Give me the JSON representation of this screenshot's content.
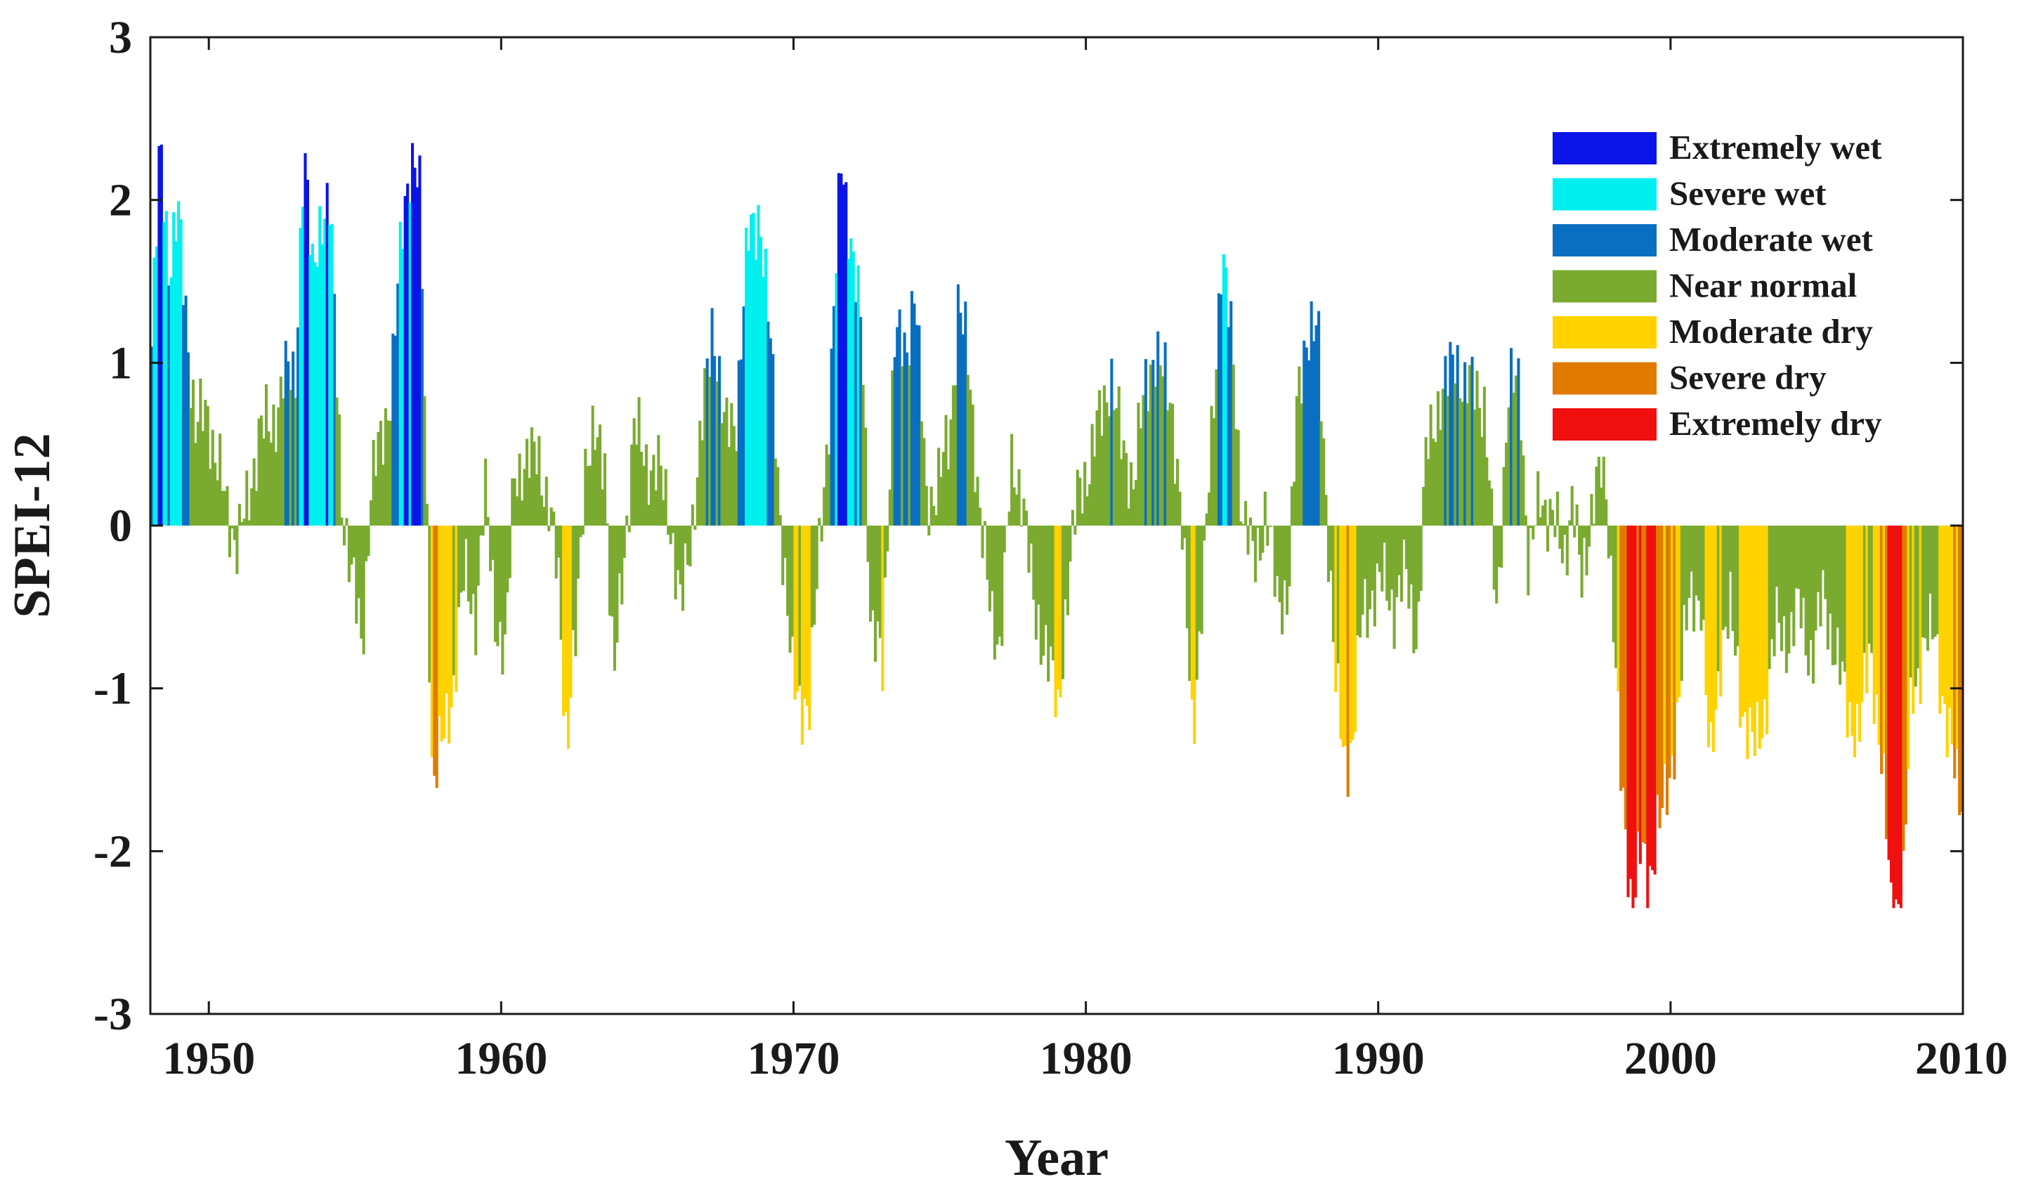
{
  "chart_data": {
    "type": "bar",
    "title": "",
    "xlabel": "Year",
    "ylabel": "SPEI-12",
    "xlim": [
      1948,
      2010
    ],
    "ylim": [
      -3,
      3
    ],
    "xticks": [
      1950,
      1960,
      1970,
      1980,
      1990,
      2000,
      2010
    ],
    "yticks": [
      -3,
      -2,
      -1,
      0,
      1,
      2,
      3
    ],
    "grid": false,
    "legend_position": "top-right",
    "categories": [
      {
        "label": "Extremely wet",
        "color": "#0a14e6",
        "min": 2.0,
        "max": 99
      },
      {
        "label": "Severe wet",
        "color": "#00f0f0",
        "min": 1.5,
        "max": 2.0
      },
      {
        "label": "Moderate wet",
        "color": "#0a6fc0",
        "min": 1.0,
        "max": 1.5
      },
      {
        "label": "Near normal",
        "color": "#7aab30",
        "min": -1.0,
        "max": 1.0
      },
      {
        "label": "Moderate dry",
        "color": "#ffd200",
        "min": -1.5,
        "max": -1.0
      },
      {
        "label": "Severe dry",
        "color": "#e07b00",
        "min": -2.0,
        "max": -1.5
      },
      {
        "label": "Extremely dry",
        "color": "#f01010",
        "min": -99,
        "max": -2.0
      }
    ],
    "series_keypoints": [
      [
        1948.0,
        1.1
      ],
      [
        1948.3,
        2.35
      ],
      [
        1948.6,
        1.6
      ],
      [
        1948.9,
        1.9
      ],
      [
        1949.2,
        1.25
      ],
      [
        1949.5,
        0.6
      ],
      [
        1949.9,
        0.7
      ],
      [
        1950.3,
        0.35
      ],
      [
        1950.6,
        0.05
      ],
      [
        1950.9,
        -0.08
      ],
      [
        1951.3,
        0.1
      ],
      [
        1951.7,
        0.65
      ],
      [
        1952.1,
        0.55
      ],
      [
        1952.5,
        0.95
      ],
      [
        1952.9,
        0.85
      ],
      [
        1953.2,
        2.35
      ],
      [
        1953.5,
        1.5
      ],
      [
        1953.8,
        1.95
      ],
      [
        1954.1,
        1.95
      ],
      [
        1954.5,
        0.2
      ],
      [
        1954.8,
        -0.3
      ],
      [
        1955.2,
        -0.7
      ],
      [
        1955.5,
        0.2
      ],
      [
        1955.8,
        0.5
      ],
      [
        1956.2,
        0.85
      ],
      [
        1956.6,
        1.9
      ],
      [
        1956.9,
        2.35
      ],
      [
        1957.2,
        1.95
      ],
      [
        1957.4,
        0.2
      ],
      [
        1957.6,
        -1.58
      ],
      [
        1958.0,
        -1.3
      ],
      [
        1958.3,
        -1.0
      ],
      [
        1958.7,
        -0.3
      ],
      [
        1959.1,
        -0.55
      ],
      [
        1959.4,
        0.2
      ],
      [
        1959.8,
        -0.6
      ],
      [
        1960.1,
        -0.85
      ],
      [
        1960.4,
        0.4
      ],
      [
        1960.8,
        0.3
      ],
      [
        1961.2,
        0.55
      ],
      [
        1961.5,
        0.1
      ],
      [
        1961.9,
        -0.2
      ],
      [
        1962.2,
        -1.42
      ],
      [
        1962.5,
        -0.7
      ],
      [
        1962.8,
        0.4
      ],
      [
        1963.2,
        0.5
      ],
      [
        1963.5,
        0.45
      ],
      [
        1963.8,
        -1.0
      ],
      [
        1964.1,
        -0.3
      ],
      [
        1964.5,
        0.6
      ],
      [
        1964.9,
        0.4
      ],
      [
        1965.3,
        0.35
      ],
      [
        1965.7,
        0.1
      ],
      [
        1966.1,
        -0.55
      ],
      [
        1966.5,
        0.05
      ],
      [
        1966.8,
        0.55
      ],
      [
        1967.2,
        1.3
      ],
      [
        1967.6,
        0.55
      ],
      [
        1968.0,
        0.7
      ],
      [
        1968.4,
        1.75
      ],
      [
        1968.8,
        1.95
      ],
      [
        1969.2,
        1.0
      ],
      [
        1969.5,
        0.1
      ],
      [
        1969.9,
        -0.95
      ],
      [
        1970.2,
        -1.05
      ],
      [
        1970.5,
        -1.15
      ],
      [
        1970.9,
        0.1
      ],
      [
        1971.2,
        0.7
      ],
      [
        1971.6,
        2.35
      ],
      [
        1972.0,
        1.55
      ],
      [
        1972.3,
        1.2
      ],
      [
        1972.6,
        -0.6
      ],
      [
        1973.0,
        -0.9
      ],
      [
        1973.4,
        1.2
      ],
      [
        1973.8,
        1.0
      ],
      [
        1974.1,
        1.55
      ],
      [
        1974.5,
        0.1
      ],
      [
        1974.9,
        0.3
      ],
      [
        1975.3,
        0.5
      ],
      [
        1975.6,
        1.45
      ],
      [
        1975.9,
        1.0
      ],
      [
        1976.3,
        0.2
      ],
      [
        1976.7,
        -0.6
      ],
      [
        1977.0,
        -0.7
      ],
      [
        1977.4,
        0.3
      ],
      [
        1977.8,
        0.25
      ],
      [
        1978.2,
        -0.6
      ],
      [
        1978.6,
        -0.7
      ],
      [
        1979.0,
        -1.2
      ],
      [
        1979.3,
        -0.4
      ],
      [
        1979.7,
        0.2
      ],
      [
        1980.1,
        0.4
      ],
      [
        1980.5,
        0.7
      ],
      [
        1980.8,
        0.95
      ],
      [
        1981.2,
        0.45
      ],
      [
        1981.6,
        0.3
      ],
      [
        1982.0,
        0.85
      ],
      [
        1982.3,
        1.1
      ],
      [
        1982.6,
        0.9
      ],
      [
        1982.9,
        0.75
      ],
      [
        1983.2,
        0.1
      ],
      [
        1983.6,
        -1.25
      ],
      [
        1984.0,
        -0.3
      ],
      [
        1984.3,
        0.7
      ],
      [
        1984.6,
        1.7
      ],
      [
        1985.0,
        1.0
      ],
      [
        1985.3,
        0.1
      ],
      [
        1985.7,
        -0.25
      ],
      [
        1986.1,
        0.1
      ],
      [
        1986.5,
        -0.45
      ],
      [
        1986.9,
        -0.4
      ],
      [
        1987.2,
        0.8
      ],
      [
        1987.5,
        1.2
      ],
      [
        1987.9,
        1.15
      ],
      [
        1988.2,
        0.1
      ],
      [
        1988.5,
        -1.0
      ],
      [
        1988.8,
        -1.45
      ],
      [
        1989.1,
        -1.3
      ],
      [
        1989.4,
        -0.55
      ],
      [
        1989.8,
        -0.4
      ],
      [
        1990.2,
        -0.35
      ],
      [
        1990.5,
        -0.5
      ],
      [
        1990.9,
        -0.3
      ],
      [
        1991.3,
        -0.7
      ],
      [
        1991.6,
        0.45
      ],
      [
        1991.9,
        0.7
      ],
      [
        1992.3,
        0.85
      ],
      [
        1992.6,
        1.1
      ],
      [
        1992.9,
        0.8
      ],
      [
        1993.3,
        0.9
      ],
      [
        1993.6,
        0.7
      ],
      [
        1994.0,
        -0.55
      ],
      [
        1994.4,
        0.8
      ],
      [
        1994.8,
        0.9
      ],
      [
        1995.1,
        -0.3
      ],
      [
        1995.5,
        0.2
      ],
      [
        1995.9,
        0.05
      ],
      [
        1996.3,
        -0.2
      ],
      [
        1996.6,
        0.2
      ],
      [
        1996.9,
        -0.4
      ],
      [
        1997.3,
        0.2
      ],
      [
        1997.7,
        0.35
      ],
      [
        1998.0,
        -0.5
      ],
      [
        1998.3,
        -1.75
      ],
      [
        1998.6,
        -2.3
      ],
      [
        1998.9,
        -1.95
      ],
      [
        1999.2,
        -2.3
      ],
      [
        1999.5,
        -1.75
      ],
      [
        1999.9,
        -1.7
      ],
      [
        2000.3,
        -0.85
      ],
      [
        2000.6,
        -0.5
      ],
      [
        2001.0,
        -0.4
      ],
      [
        2001.3,
        -1.55
      ],
      [
        2001.7,
        -0.7
      ],
      [
        2002.0,
        -0.55
      ],
      [
        2002.4,
        -1.1
      ],
      [
        2002.8,
        -1.4
      ],
      [
        2003.2,
        -1.1
      ],
      [
        2003.6,
        -0.6
      ],
      [
        2004.0,
        -0.7
      ],
      [
        2004.4,
        -0.5
      ],
      [
        2004.8,
        -0.85
      ],
      [
        2005.2,
        -0.4
      ],
      [
        2005.6,
        -0.8
      ],
      [
        2006.0,
        -1.1
      ],
      [
        2006.4,
        -1.3
      ],
      [
        2006.8,
        -0.7
      ],
      [
        2007.2,
        -1.55
      ],
      [
        2007.5,
        -2.3
      ],
      [
        2007.9,
        -2.3
      ],
      [
        2008.2,
        -1.0
      ],
      [
        2008.6,
        -0.8
      ],
      [
        2009.0,
        -0.6
      ],
      [
        2009.4,
        -1.3
      ],
      [
        2009.8,
        -1.55
      ],
      [
        2010.0,
        -1.7
      ]
    ]
  }
}
